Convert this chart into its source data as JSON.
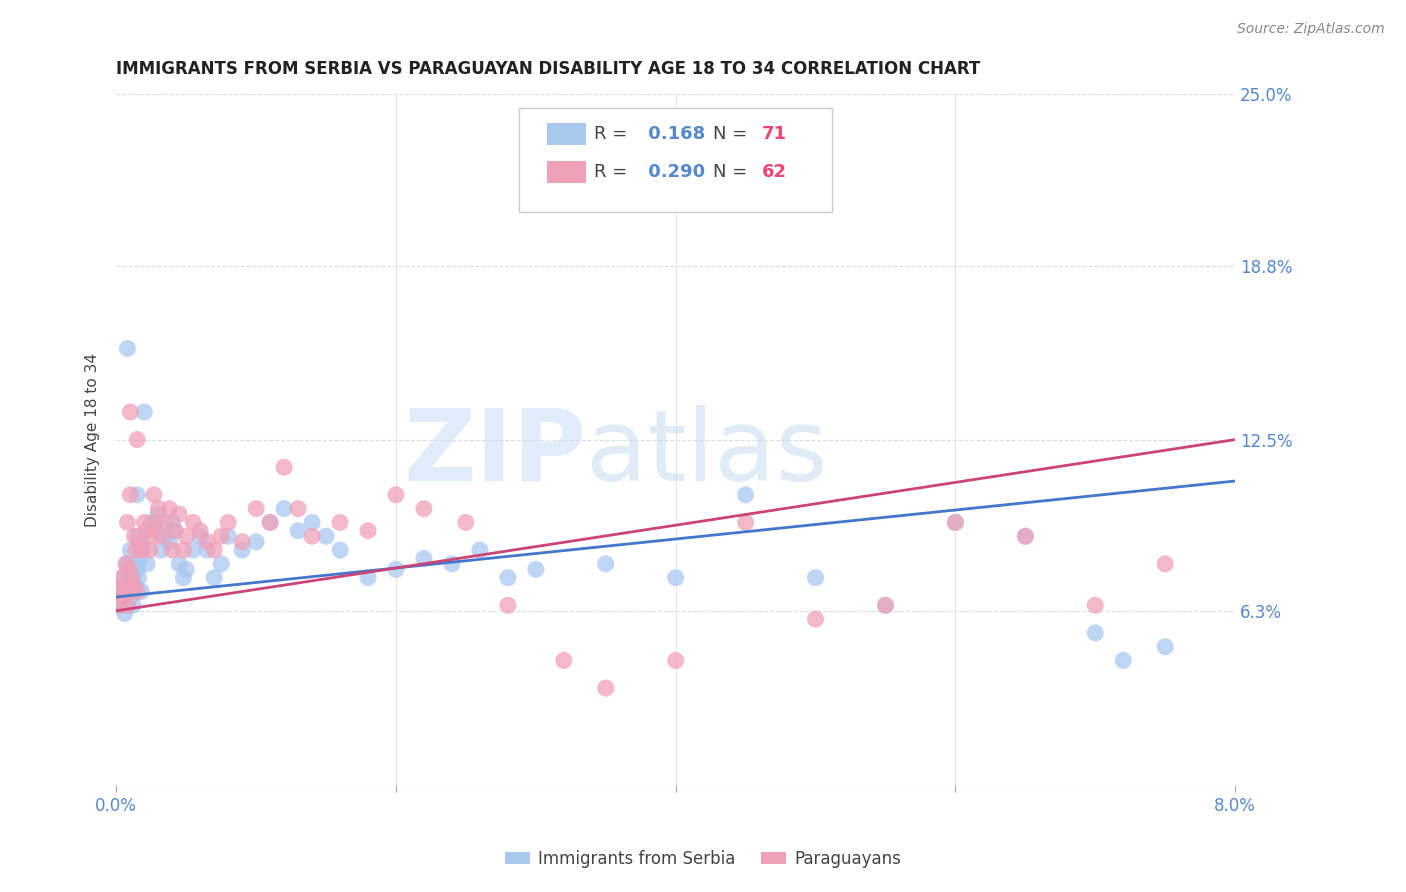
{
  "title": "IMMIGRANTS FROM SERBIA VS PARAGUAYAN DISABILITY AGE 18 TO 34 CORRELATION CHART",
  "source": "Source: ZipAtlas.com",
  "ylabel": "Disability Age 18 to 34",
  "xlim": [
    0.0,
    8.0
  ],
  "ylim": [
    0.0,
    25.0
  ],
  "yticks": [
    0.0,
    6.3,
    12.5,
    18.8,
    25.0
  ],
  "ytick_labels": [
    "",
    "6.3%",
    "12.5%",
    "18.8%",
    "25.0%"
  ],
  "xtick_positions": [
    0.0,
    8.0
  ],
  "xtick_labels": [
    "0.0%",
    "8.0%"
  ],
  "series": [
    {
      "name": "Immigrants from Serbia",
      "R": 0.168,
      "N": 71,
      "color": "#a8c8f0",
      "trend_color": "#4477cc",
      "trend_x": [
        0.0,
        8.0
      ],
      "trend_y": [
        6.8,
        11.0
      ],
      "x": [
        0.02,
        0.03,
        0.04,
        0.05,
        0.05,
        0.06,
        0.07,
        0.07,
        0.08,
        0.08,
        0.09,
        0.1,
        0.1,
        0.11,
        0.12,
        0.12,
        0.13,
        0.14,
        0.15,
        0.15,
        0.16,
        0.17,
        0.18,
        0.18,
        0.19,
        0.2,
        0.22,
        0.25,
        0.28,
        0.3,
        0.32,
        0.35,
        0.38,
        0.4,
        0.42,
        0.45,
        0.48,
        0.5,
        0.55,
        0.6,
        0.65,
        0.7,
        0.75,
        0.8,
        0.9,
        1.0,
        1.1,
        1.2,
        1.3,
        1.4,
        1.5,
        1.6,
        1.8,
        2.0,
        2.2,
        2.4,
        2.6,
        2.8,
        3.0,
        3.5,
        4.0,
        4.5,
        5.0,
        5.5,
        6.0,
        6.5,
        7.0,
        7.2,
        7.5,
        0.08,
        0.15
      ],
      "y": [
        7.0,
        6.5,
        7.2,
        6.8,
        7.5,
        6.2,
        7.0,
        8.0,
        6.5,
        7.8,
        7.2,
        6.8,
        8.5,
        7.0,
        7.5,
        6.5,
        8.0,
        7.2,
        7.8,
        9.0,
        7.5,
        8.2,
        8.8,
        7.0,
        8.5,
        13.5,
        8.0,
        9.5,
        9.2,
        9.8,
        8.5,
        9.0,
        8.8,
        9.5,
        9.2,
        8.0,
        7.5,
        7.8,
        8.5,
        9.0,
        8.5,
        7.5,
        8.0,
        9.0,
        8.5,
        8.8,
        9.5,
        10.0,
        9.2,
        9.5,
        9.0,
        8.5,
        7.5,
        7.8,
        8.2,
        8.0,
        8.5,
        7.5,
        7.8,
        8.0,
        7.5,
        10.5,
        7.5,
        6.5,
        9.5,
        9.0,
        5.5,
        4.5,
        5.0,
        15.8,
        10.5
      ]
    },
    {
      "name": "Paraguayans",
      "R": 0.29,
      "N": 62,
      "color": "#f0a0b8",
      "trend_color": "#cc4477",
      "trend_x": [
        0.0,
        8.0
      ],
      "trend_y": [
        6.3,
        12.5
      ],
      "x": [
        0.02,
        0.03,
        0.04,
        0.05,
        0.06,
        0.07,
        0.08,
        0.08,
        0.09,
        0.1,
        0.1,
        0.11,
        0.12,
        0.13,
        0.14,
        0.15,
        0.15,
        0.16,
        0.18,
        0.2,
        0.22,
        0.24,
        0.25,
        0.27,
        0.28,
        0.3,
        0.32,
        0.35,
        0.38,
        0.4,
        0.42,
        0.45,
        0.48,
        0.5,
        0.55,
        0.6,
        0.65,
        0.7,
        0.75,
        0.8,
        0.9,
        1.0,
        1.1,
        1.2,
        1.3,
        1.4,
        1.6,
        1.8,
        2.0,
        2.2,
        2.5,
        2.8,
        3.2,
        3.5,
        4.0,
        4.5,
        5.0,
        5.5,
        6.0,
        6.5,
        7.0,
        7.5
      ],
      "y": [
        6.5,
        7.0,
        7.5,
        6.8,
        7.2,
        8.0,
        6.5,
        9.5,
        7.8,
        10.5,
        13.5,
        7.5,
        7.2,
        9.0,
        8.5,
        12.5,
        7.0,
        8.8,
        8.5,
        9.5,
        9.2,
        8.5,
        9.0,
        10.5,
        9.5,
        10.0,
        9.0,
        9.5,
        10.0,
        8.5,
        9.2,
        9.8,
        8.5,
        9.0,
        9.5,
        9.2,
        8.8,
        8.5,
        9.0,
        9.5,
        8.8,
        10.0,
        9.5,
        11.5,
        10.0,
        9.0,
        9.5,
        9.2,
        10.5,
        10.0,
        9.5,
        6.5,
        4.5,
        3.5,
        4.5,
        9.5,
        6.0,
        6.5,
        9.5,
        9.0,
        6.5,
        8.0
      ]
    }
  ],
  "legend_entries": [
    {
      "R_text": "R = ",
      "R_val": " 0.168",
      "N_text": "  N = ",
      "N_val": "71",
      "color": "#a8c8f0"
    },
    {
      "R_text": "R = ",
      "R_val": " 0.290",
      "N_text": "  N = ",
      "N_val": "62",
      "color": "#f0a0b8"
    }
  ],
  "watermark_zip": "ZIP",
  "watermark_atlas": "atlas",
  "title_fontsize": 12,
  "axis_label_fontsize": 11,
  "tick_fontsize": 12,
  "legend_fontsize": 13,
  "source_fontsize": 10,
  "background_color": "#ffffff",
  "grid_color": "#dddddd",
  "tick_color": "#5588cc"
}
